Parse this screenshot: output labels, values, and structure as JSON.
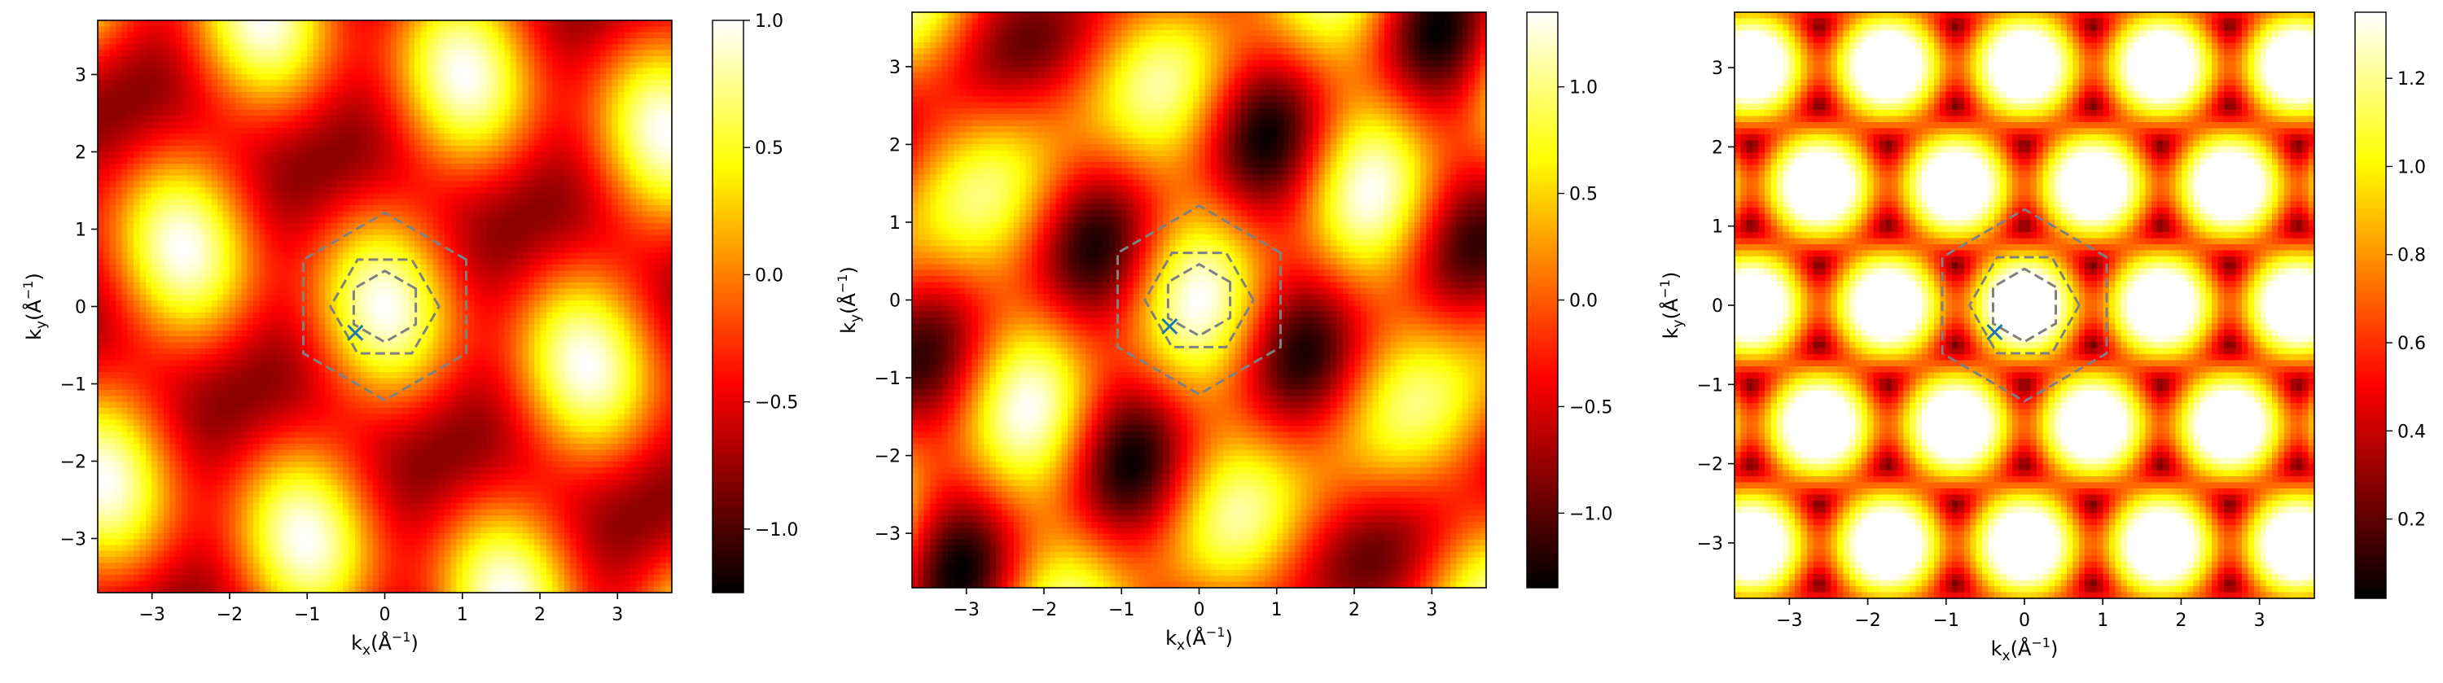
{
  "chart_data": [
    {
      "type": "heatmap",
      "xlabel": "k_x(Å^-1)",
      "ylabel": "k_y(Å^-1)",
      "xlim": [
        -3.7,
        3.7
      ],
      "ylim": [
        -3.7,
        3.7
      ],
      "x_ticks": [
        -3,
        -2,
        -1,
        0,
        1,
        2,
        3
      ],
      "y_ticks": [
        -3,
        -2,
        -1,
        0,
        1,
        2,
        3
      ],
      "x_tick_labels": [
        "−3",
        "−2",
        "−1",
        "0",
        "1",
        "2",
        "3"
      ],
      "y_tick_labels": [
        "−3",
        "−2",
        "−1",
        "0",
        "1",
        "2",
        "3"
      ],
      "colormap": "hot",
      "colorbar": {
        "range": [
          -1.25,
          1.0
        ],
        "ticks": [
          -1.0,
          -0.5,
          0.0,
          0.5,
          1.0
        ],
        "tick_labels": [
          "−1.0",
          "−0.5",
          "0.0",
          "0.5",
          "1.0"
        ]
      },
      "pattern": "cos_sum_ab",
      "brillouin_zones": [
        {
          "corners": [
            [
              0.7,
              0.0
            ],
            [
              0.35,
              0.606
            ],
            [
              -0.35,
              0.606
            ],
            [
              -0.7,
              0.0
            ],
            [
              -0.35,
              -0.606
            ],
            [
              0.35,
              -0.606
            ]
          ]
        },
        {
          "corners": [
            [
              1.05,
              0.606
            ],
            [
              0.0,
              1.212
            ],
            [
              -1.05,
              0.606
            ],
            [
              -1.05,
              -0.606
            ],
            [
              0.0,
              -1.212
            ],
            [
              1.05,
              -0.606
            ]
          ]
        },
        {
          "corners": [
            [
              0.4,
              0.23
            ],
            [
              0.0,
              0.46
            ],
            [
              -0.4,
              0.23
            ],
            [
              -0.4,
              -0.23
            ],
            [
              0.0,
              -0.46
            ],
            [
              0.4,
              -0.23
            ]
          ]
        }
      ],
      "marker": {
        "symbol": "x",
        "x": -0.38,
        "y": -0.34
      }
    },
    {
      "type": "heatmap",
      "xlabel": "k_x(Å^-1)",
      "ylabel": "k_y(Å^-1)",
      "xlim": [
        -3.7,
        3.7
      ],
      "ylim": [
        -3.7,
        3.7
      ],
      "x_ticks": [
        -3,
        -2,
        -1,
        0,
        1,
        2,
        3
      ],
      "y_ticks": [
        -3,
        -2,
        -1,
        0,
        1,
        2,
        3
      ],
      "x_tick_labels": [
        "−3",
        "−2",
        "−1",
        "0",
        "1",
        "2",
        "3"
      ],
      "y_tick_labels": [
        "−3",
        "−2",
        "−1",
        "0",
        "1",
        "2",
        "3"
      ],
      "colormap": "hot",
      "colorbar": {
        "range": [
          -1.35,
          1.35
        ],
        "ticks": [
          -1.0,
          -0.5,
          0.0,
          0.5,
          1.0
        ],
        "tick_labels": [
          "−1.0",
          "−0.5",
          "0.0",
          "0.5",
          "1.0"
        ]
      },
      "pattern": "cos_sum_bc",
      "brillouin_zones": [
        {
          "corners": [
            [
              0.7,
              0.0
            ],
            [
              0.35,
              0.606
            ],
            [
              -0.35,
              0.606
            ],
            [
              -0.7,
              0.0
            ],
            [
              -0.35,
              -0.606
            ],
            [
              0.35,
              -0.606
            ]
          ]
        },
        {
          "corners": [
            [
              1.05,
              0.606
            ],
            [
              0.0,
              1.212
            ],
            [
              -1.05,
              0.606
            ],
            [
              -1.05,
              -0.606
            ],
            [
              0.0,
              -1.212
            ],
            [
              1.05,
              -0.606
            ]
          ]
        },
        {
          "corners": [
            [
              0.4,
              0.23
            ],
            [
              0.0,
              0.46
            ],
            [
              -0.4,
              0.23
            ],
            [
              -0.4,
              -0.23
            ],
            [
              0.0,
              -0.46
            ],
            [
              0.4,
              -0.23
            ]
          ]
        }
      ],
      "marker": {
        "symbol": "x",
        "x": -0.38,
        "y": -0.34
      }
    },
    {
      "type": "heatmap",
      "xlabel": "k_x(Å^-1)",
      "ylabel": "k_y(Å^-1)",
      "xlim": [
        -3.7,
        3.7
      ],
      "ylim": [
        -3.7,
        3.7
      ],
      "x_ticks": [
        -3,
        -2,
        -1,
        0,
        1,
        2,
        3
      ],
      "y_ticks": [
        -3,
        -2,
        -1,
        0,
        1,
        2,
        3
      ],
      "x_tick_labels": [
        "−3",
        "−2",
        "−1",
        "0",
        "1",
        "2",
        "3"
      ],
      "y_tick_labels": [
        "−3",
        "−2",
        "−1",
        "0",
        "1",
        "2",
        "3"
      ],
      "colormap": "hot",
      "colorbar": {
        "range": [
          0.02,
          1.35
        ],
        "ticks": [
          0.2,
          0.4,
          0.6,
          0.8,
          1.0,
          1.2
        ],
        "tick_labels": [
          "0.2",
          "0.4",
          "0.6",
          "0.8",
          "1.0",
          "1.2"
        ]
      },
      "pattern": "magnitude",
      "brillouin_zones": [
        {
          "corners": [
            [
              0.7,
              0.0
            ],
            [
              0.35,
              0.606
            ],
            [
              -0.35,
              0.606
            ],
            [
              -0.7,
              0.0
            ],
            [
              -0.35,
              -0.606
            ],
            [
              0.35,
              -0.606
            ]
          ]
        },
        {
          "corners": [
            [
              1.05,
              0.606
            ],
            [
              0.0,
              1.212
            ],
            [
              -1.05,
              0.606
            ],
            [
              -1.05,
              -0.606
            ],
            [
              0.0,
              -1.212
            ],
            [
              1.05,
              -0.606
            ]
          ]
        },
        {
          "corners": [
            [
              0.4,
              0.23
            ],
            [
              0.0,
              0.46
            ],
            [
              -0.4,
              0.23
            ],
            [
              -0.4,
              -0.23
            ],
            [
              0.0,
              -0.46
            ],
            [
              0.4,
              -0.23
            ]
          ]
        }
      ],
      "marker": {
        "symbol": "x",
        "x": -0.38,
        "y": -0.34
      }
    }
  ],
  "colors": {
    "zone_line": "#808080",
    "marker": "#1f77b4",
    "axis": "#000000"
  }
}
